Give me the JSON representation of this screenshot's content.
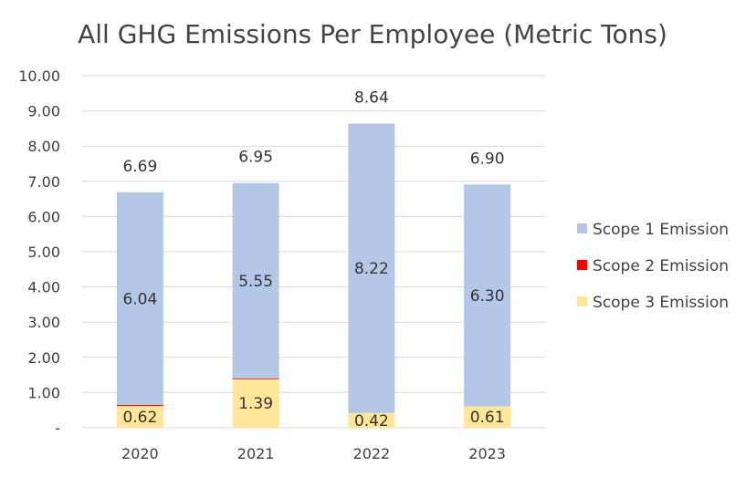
{
  "chart_data": {
    "type": "bar",
    "stacked": true,
    "title": "All GHG Emissions Per Employee (Metric Tons)",
    "categories": [
      "2020",
      "2021",
      "2022",
      "2023"
    ],
    "series": [
      {
        "name": "Scope 1 Emission",
        "color": "#b4c7e7",
        "values": [
          6.04,
          5.55,
          8.22,
          6.3
        ],
        "labels": [
          "6.04",
          "5.55",
          "8.22",
          "6.30"
        ]
      },
      {
        "name": "Scope 2 Emission",
        "color": "#ff0000",
        "values": [
          0.03,
          0.01,
          0.0,
          0.0
        ],
        "labels": []
      },
      {
        "name": "Scope 3 Emission",
        "color": "#ffe699",
        "values": [
          0.62,
          1.39,
          0.42,
          0.61
        ],
        "labels": [
          "0.62",
          "1.39",
          "0.42",
          "0.61"
        ]
      }
    ],
    "stack_order": [
      "Scope 3 Emission",
      "Scope 2 Emission",
      "Scope 1 Emission"
    ],
    "totals": [
      6.69,
      6.95,
      8.64,
      6.9
    ],
    "total_labels": [
      "6.69",
      "6.95",
      "8.64",
      "6.90"
    ],
    "ylim": [
      0,
      10
    ],
    "yticks": [
      0,
      1,
      2,
      3,
      4,
      5,
      6,
      7,
      8,
      9,
      10
    ],
    "ytick_labels": [
      "-",
      "1.00",
      "2.00",
      "3.00",
      "4.00",
      "5.00",
      "6.00",
      "7.00",
      "8.00",
      "9.00",
      "10.00"
    ],
    "xlabel": "",
    "ylabel": "",
    "grid": true,
    "legend_position": "right",
    "gridline_color": "#d9d9d9",
    "title_color": "#444444"
  }
}
